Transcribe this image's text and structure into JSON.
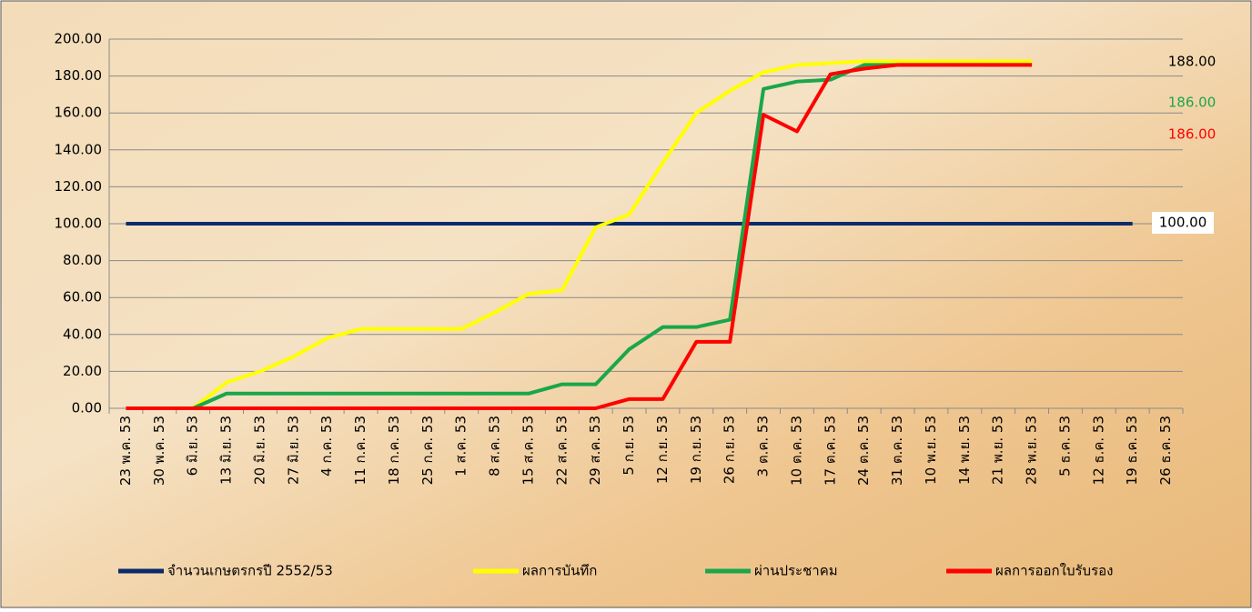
{
  "chart_data": {
    "type": "line",
    "categories": [
      "23 พ.ค. 53",
      "30 พ.ค. 53",
      "6 มิ.ย. 53",
      "13 มิ.ย. 53",
      "20 มิ.ย. 53",
      "27 มิ.ย. 53",
      "4 ก.ค. 53",
      "11 ก.ค. 53",
      "18 ก.ค. 53",
      "25 ก.ค. 53",
      "1 ส.ค. 53",
      "8 ส.ค. 53",
      "15 ส.ค. 53",
      "22 ส.ค. 53",
      "29 ส.ค. 53",
      "5 ก.ย. 53",
      "12 ก.ย. 53",
      "19 ก.ย. 53",
      "26 ก.ย. 53",
      "3 ต.ค. 53",
      "10 ต.ค. 53",
      "17 ต.ค. 53",
      "24 ต.ค. 53",
      "31 ต.ค. 53",
      "10 พ.ย. 53",
      "14 พ.ย. 53",
      "21 พ.ย. 53",
      "28 พ.ย. 53",
      "5 ธ.ค. 53",
      "12 ธ.ค. 53",
      "19 ธ.ค. 53",
      "26 ธ.ค. 53"
    ],
    "series": [
      {
        "name": "จำนวนเกษตรกรปี  2552/53",
        "color": "#0b2a6b",
        "values": [
          100,
          100,
          100,
          100,
          100,
          100,
          100,
          100,
          100,
          100,
          100,
          100,
          100,
          100,
          100,
          100,
          100,
          100,
          100,
          100,
          100,
          100,
          100,
          100,
          100,
          100,
          100,
          100,
          100,
          100,
          100,
          null
        ],
        "end_label": "100.00",
        "end_label_color": "#000000"
      },
      {
        "name": "ผลการบันทึก",
        "color": "#ffff00",
        "values": [
          0,
          0,
          0,
          14,
          20,
          28,
          38,
          43,
          43,
          43,
          43,
          52,
          62,
          64,
          98,
          105,
          133,
          160,
          172,
          182,
          186,
          187,
          188,
          188,
          188,
          188,
          188,
          188,
          null,
          null,
          null,
          null
        ],
        "end_label": "188.00",
        "end_label_color": "#000000"
      },
      {
        "name": "ผ่านประชาคม",
        "color": "#1aa64a",
        "values": [
          0,
          0,
          0,
          8,
          8,
          8,
          8,
          8,
          8,
          8,
          8,
          8,
          8,
          13,
          13,
          32,
          44,
          44,
          48,
          173,
          177,
          178,
          186,
          186,
          186,
          186,
          186,
          186,
          null,
          null,
          null,
          null
        ],
        "end_label": "186.00",
        "end_label_color": "#1aa64a"
      },
      {
        "name": "ผลการออกใบรับรอง",
        "color": "#ff0000",
        "values": [
          0,
          0,
          0,
          0,
          0,
          0,
          0,
          0,
          0,
          0,
          0,
          0,
          0,
          0,
          0,
          5,
          5,
          36,
          36,
          159,
          150,
          181,
          184,
          186,
          186,
          186,
          186,
          186,
          null,
          null,
          null,
          null
        ],
        "end_label": "186.00",
        "end_label_color": "#ff0000"
      }
    ],
    "ylim": [
      0,
      200
    ],
    "yticks": [
      {
        "value": 0,
        "label": "0.00"
      },
      {
        "value": 20,
        "label": "20.00"
      },
      {
        "value": 40,
        "label": "40.00"
      },
      {
        "value": 60,
        "label": "60.00"
      },
      {
        "value": 80,
        "label": "80.00"
      },
      {
        "value": 100,
        "label": "100.00"
      },
      {
        "value": 120,
        "label": "120.00"
      },
      {
        "value": 140,
        "label": "140.00"
      },
      {
        "value": 160,
        "label": "160.00"
      },
      {
        "value": 180,
        "label": "180.00"
      },
      {
        "value": 200,
        "label": "200.00"
      }
    ],
    "grid": true,
    "legend": "bottom"
  }
}
